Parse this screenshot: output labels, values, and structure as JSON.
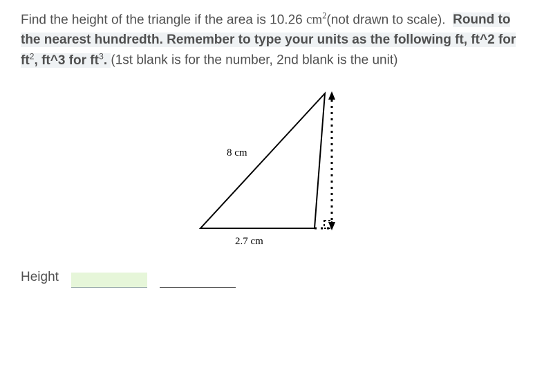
{
  "question": {
    "prefix": "Find the height of the triangle if the area is 10.26",
    "area_unit_base": "cm",
    "area_unit_exp": "2",
    "mid": "(not drawn to scale).",
    "bold_1": "Round to the nearest hundredth.  Remember to type your units as the following ft, ft^2 for ft",
    "sup2": "2",
    "bold_2": ", ft^3 for ft",
    "sup3": "3",
    "bold_3": ".",
    "tail": "(1st blank is for the number, 2nd blank is the unit)"
  },
  "triangle": {
    "hypotenuse_label": "8 cm",
    "base_label": "2.7 cm",
    "vertices": {
      "A": [
        20,
        210
      ],
      "B": [
        185,
        210
      ],
      "C": [
        200,
        15
      ]
    },
    "dash_top": [
      210,
      15
    ],
    "dash_bottom": [
      210,
      210
    ],
    "stroke": "#000000",
    "stroke_width": 2,
    "dash_pattern": "3,6",
    "colors": {
      "bg": "#ffffff"
    }
  },
  "answer": {
    "label": "Height",
    "blank_bg": "#e6f6d9"
  }
}
